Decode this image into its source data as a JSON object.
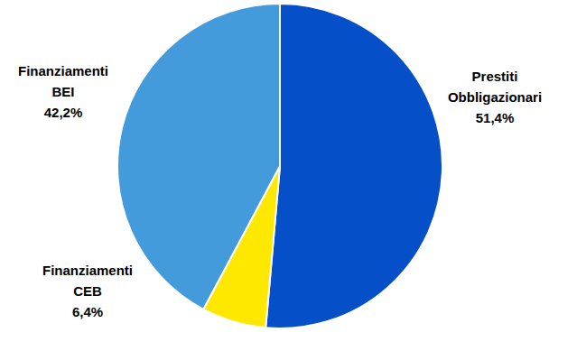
{
  "chart_data": {
    "type": "pie",
    "categories": [
      "Prestiti Obbligazionari",
      "Finanziamenti CEB",
      "Finanziamenti BEI"
    ],
    "values": [
      51.4,
      6.4,
      42.2
    ],
    "value_labels": [
      "51,4%",
      "6,4%",
      "42,2%"
    ],
    "colors": [
      "#0550c8",
      "#ffe800",
      "#449bdc"
    ],
    "data_labels": true
  }
}
